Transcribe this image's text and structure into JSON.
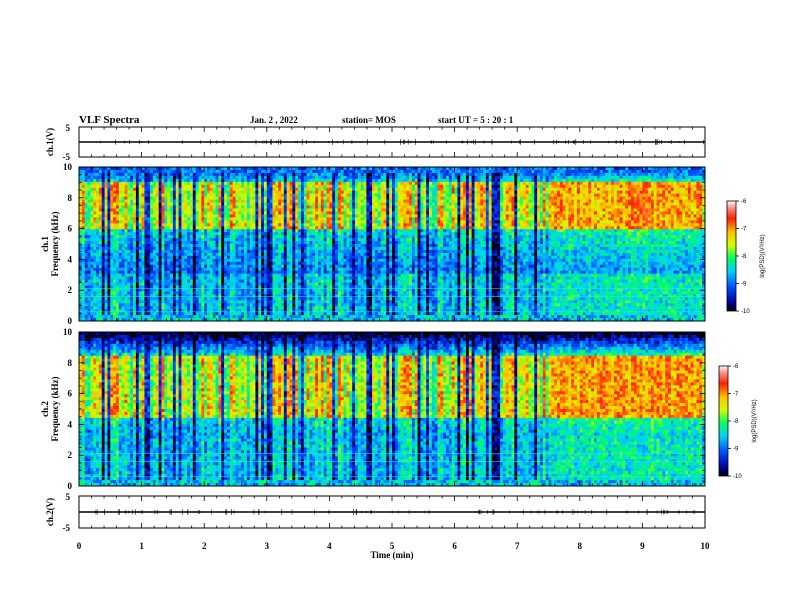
{
  "header": {
    "title": "VLF Spectra",
    "date": "Jan. 2 , 2022",
    "station": "station= MOS",
    "start": "start UT =  5 : 20 : 1"
  },
  "chart_data": [
    {
      "type": "line",
      "name": "ch1-waveform",
      "ylabel": "ch.1(V)",
      "ylim": [
        -5,
        5
      ],
      "yticks": [
        "5",
        "-5"
      ],
      "xlim": [
        0,
        10
      ]
    },
    {
      "type": "heatmap",
      "name": "ch1-spectrogram",
      "ylabel": "ch.1\nFrequency (kHz)",
      "ylabel_lines": [
        "ch.1",
        "Frequency (kHz)"
      ],
      "ylim": [
        0,
        10
      ],
      "yticks": [
        "0",
        "2",
        "4",
        "6",
        "8",
        "10"
      ],
      "xlim": [
        0,
        10
      ],
      "colorbar": {
        "label": "log(PSD)(V²/Hz)",
        "ticks": [
          "-6",
          "-7",
          "-8",
          "-9",
          "-10"
        ],
        "range": [
          -10,
          -6
        ],
        "colors": [
          "#000080",
          "#0000ff",
          "#00c8ff",
          "#00ff80",
          "#ffff00",
          "#ff8000",
          "#ff0000",
          "#ffffff"
        ]
      },
      "features": {
        "strong_band_khz": [
          6,
          9
        ],
        "quiet_intervals_min": [
          [
            7.5,
            9.85
          ]
        ]
      }
    },
    {
      "type": "heatmap",
      "name": "ch2-spectrogram",
      "ylabel": "ch.2\nFrequency (kHz)",
      "ylabel_lines": [
        "ch.2",
        "Frequency (kHz)"
      ],
      "ylim": [
        0,
        10
      ],
      "yticks": [
        "0",
        "2",
        "4",
        "6",
        "8",
        "10"
      ],
      "xlim": [
        0,
        10
      ],
      "colorbar": {
        "label": "log(PSD)(V²/Hz)",
        "ticks": [
          "-6",
          "-7",
          "-8",
          "-9",
          "-10"
        ],
        "range": [
          -10,
          -6
        ],
        "colors": [
          "#000080",
          "#0000ff",
          "#00c8ff",
          "#00ff80",
          "#ffff00",
          "#ff8000",
          "#ff0000",
          "#ffffff"
        ]
      },
      "features": {
        "strong_band_khz": [
          4.5,
          8.5
        ],
        "quiet_intervals_min": [
          [
            7.5,
            9.85
          ]
        ]
      }
    },
    {
      "type": "line",
      "name": "ch2-waveform",
      "ylabel": "ch.2(V)",
      "ylim": [
        -5,
        5
      ],
      "yticks": [
        "5",
        "-5"
      ],
      "xlim": [
        0,
        10
      ]
    }
  ],
  "xaxis": {
    "label": "Time (min)",
    "ticks": [
      "0",
      "1",
      "2",
      "3",
      "4",
      "5",
      "6",
      "7",
      "8",
      "9",
      "10"
    ],
    "range": [
      0,
      10
    ]
  }
}
